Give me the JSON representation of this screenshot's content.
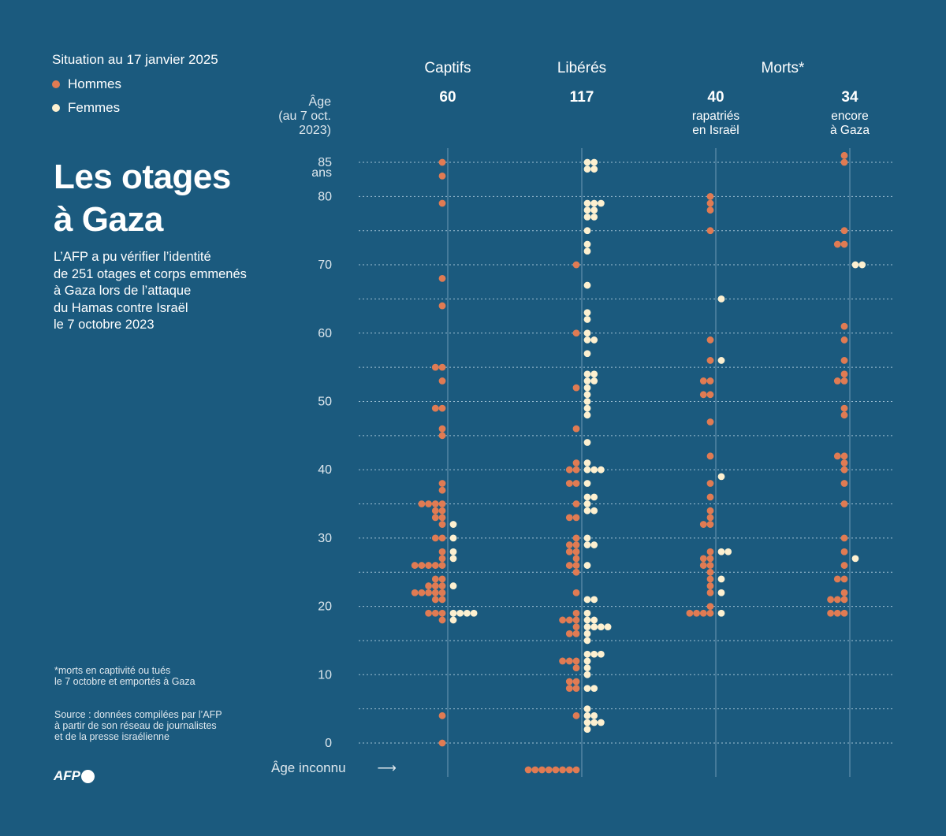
{
  "header": {
    "situation": "Situation au 17 janvier 2025",
    "legend": [
      {
        "label": "Hommes",
        "color": "#e07b53"
      },
      {
        "label": "Femmes",
        "color": "#fdf0d0"
      }
    ],
    "title_line1": "Les otages",
    "title_line2": "à Gaza",
    "intro": [
      "L’AFP a pu vérifier l’identité",
      "de 251 otages et corps emmenés",
      "à Gaza lors de l’attaque",
      "du Hamas contre Israël",
      "le 7 octobre 2023"
    ]
  },
  "footer": {
    "note": [
      "*morts en captivité ou tués",
      "le 7 octobre et emportés à Gaza"
    ],
    "source": [
      "Source : données compilées par l’AFP",
      "à partir de son réseau de journalistes",
      "et de la presse israélienne"
    ],
    "logo": "AFP"
  },
  "colors": {
    "background": "#1b5a7e",
    "men": "#e07b53",
    "women": "#fdf0d0"
  },
  "chart_data": {
    "type": "dot-plot",
    "ylabel": [
      "Âge",
      "(au 7 oct.",
      "2023)"
    ],
    "y_ticks": [
      {
        "value": 85,
        "label": "85",
        "sublabel": "ans"
      },
      {
        "value": 80,
        "label": "80"
      },
      {
        "value": 70,
        "label": "70"
      },
      {
        "value": 60,
        "label": "60"
      },
      {
        "value": 50,
        "label": "50"
      },
      {
        "value": 40,
        "label": "40"
      },
      {
        "value": 30,
        "label": "30"
      },
      {
        "value": 20,
        "label": "20"
      },
      {
        "value": 10,
        "label": "10"
      },
      {
        "value": 0,
        "label": "0"
      }
    ],
    "ylim": [
      0,
      85
    ],
    "grid": "dotted every 5 years",
    "unknown_age_label": "Âge inconnu",
    "unknown_arrow": "⟶",
    "group_labels": [
      {
        "label": "Captifs",
        "columns": [
          0
        ]
      },
      {
        "label": "Libérés",
        "columns": [
          1
        ]
      },
      {
        "label": "Morts*",
        "columns": [
          2,
          3
        ]
      }
    ],
    "columns": [
      {
        "total": "60",
        "sub": [],
        "unknown": {
          "men": 0,
          "women": 0
        },
        "ages": [
          [
            85,
            1,
            0
          ],
          [
            83,
            1,
            0
          ],
          [
            79,
            1,
            0
          ],
          [
            68,
            1,
            0
          ],
          [
            64,
            1,
            0
          ],
          [
            55,
            2,
            0
          ],
          [
            53,
            1,
            0
          ],
          [
            49,
            2,
            0
          ],
          [
            46,
            1,
            0
          ],
          [
            45,
            1,
            0
          ],
          [
            38,
            1,
            0
          ],
          [
            37,
            1,
            0
          ],
          [
            35,
            4,
            0
          ],
          [
            34,
            2,
            0
          ],
          [
            33,
            2,
            0
          ],
          [
            32,
            1,
            1
          ],
          [
            30,
            2,
            1
          ],
          [
            28,
            1,
            1
          ],
          [
            27,
            1,
            1
          ],
          [
            26,
            5,
            0
          ],
          [
            24,
            2,
            0
          ],
          [
            23,
            3,
            1
          ],
          [
            22,
            5,
            0
          ],
          [
            21,
            2,
            0
          ],
          [
            19,
            3,
            4
          ],
          [
            18,
            1,
            1
          ],
          [
            4,
            1,
            0
          ],
          [
            0,
            1,
            0
          ]
        ]
      },
      {
        "total": "117",
        "sub": [],
        "unknown": {
          "men": 8,
          "women": 0
        },
        "ages": [
          [
            85,
            0,
            2
          ],
          [
            84,
            0,
            2
          ],
          [
            79,
            0,
            3
          ],
          [
            78,
            0,
            2
          ],
          [
            77,
            0,
            2
          ],
          [
            75,
            0,
            1
          ],
          [
            73,
            0,
            1
          ],
          [
            72,
            0,
            1
          ],
          [
            70,
            1,
            0
          ],
          [
            67,
            0,
            1
          ],
          [
            63,
            0,
            1
          ],
          [
            62,
            0,
            1
          ],
          [
            60,
            1,
            1
          ],
          [
            59,
            0,
            2
          ],
          [
            57,
            0,
            1
          ],
          [
            54,
            0,
            2
          ],
          [
            53,
            0,
            2
          ],
          [
            52,
            1,
            1
          ],
          [
            51,
            0,
            1
          ],
          [
            50,
            0,
            1
          ],
          [
            49,
            0,
            1
          ],
          [
            48,
            0,
            1
          ],
          [
            46,
            1,
            0
          ],
          [
            44,
            0,
            1
          ],
          [
            41,
            1,
            1
          ],
          [
            40,
            2,
            3
          ],
          [
            38,
            2,
            1
          ],
          [
            36,
            0,
            2
          ],
          [
            35,
            1,
            1
          ],
          [
            34,
            0,
            2
          ],
          [
            33,
            2,
            0
          ],
          [
            30,
            1,
            1
          ],
          [
            29,
            2,
            2
          ],
          [
            28,
            2,
            0
          ],
          [
            27,
            1,
            0
          ],
          [
            26,
            2,
            1
          ],
          [
            25,
            1,
            0
          ],
          [
            22,
            1,
            0
          ],
          [
            21,
            0,
            2
          ],
          [
            19,
            1,
            1
          ],
          [
            18,
            3,
            2
          ],
          [
            17,
            1,
            4
          ],
          [
            16,
            2,
            1
          ],
          [
            15,
            0,
            1
          ],
          [
            13,
            0,
            3
          ],
          [
            12,
            3,
            1
          ],
          [
            11,
            1,
            1
          ],
          [
            10,
            0,
            1
          ],
          [
            9,
            2,
            0
          ],
          [
            8,
            2,
            2
          ],
          [
            5,
            0,
            1
          ],
          [
            4,
            1,
            2
          ],
          [
            3,
            0,
            3
          ],
          [
            2,
            0,
            1
          ]
        ]
      },
      {
        "total": "40",
        "sub": [
          "rapatriés",
          "en Israël"
        ],
        "unknown": {
          "men": 0,
          "women": 0
        },
        "ages": [
          [
            80,
            1,
            0
          ],
          [
            79,
            1,
            0
          ],
          [
            78,
            1,
            0
          ],
          [
            75,
            1,
            0
          ],
          [
            65,
            0,
            1
          ],
          [
            59,
            1,
            0
          ],
          [
            56,
            1,
            1
          ],
          [
            53,
            2,
            0
          ],
          [
            51,
            2,
            0
          ],
          [
            47,
            1,
            0
          ],
          [
            42,
            1,
            0
          ],
          [
            39,
            0,
            1
          ],
          [
            38,
            1,
            0
          ],
          [
            36,
            1,
            0
          ],
          [
            34,
            1,
            0
          ],
          [
            33,
            1,
            0
          ],
          [
            32,
            2,
            0
          ],
          [
            28,
            1,
            2
          ],
          [
            27,
            2,
            0
          ],
          [
            26,
            2,
            0
          ],
          [
            25,
            1,
            0
          ],
          [
            24,
            1,
            1
          ],
          [
            23,
            1,
            0
          ],
          [
            22,
            1,
            1
          ],
          [
            20,
            1,
            0
          ],
          [
            19,
            4,
            1
          ]
        ]
      },
      {
        "total": "34",
        "sub": [
          "encore",
          "à Gaza"
        ],
        "unknown": {
          "men": 0,
          "women": 0
        },
        "ages": [
          [
            86,
            1,
            0
          ],
          [
            85,
            1,
            0
          ],
          [
            75,
            1,
            0
          ],
          [
            73,
            2,
            0
          ],
          [
            70,
            0,
            2
          ],
          [
            61,
            1,
            0
          ],
          [
            59,
            1,
            0
          ],
          [
            56,
            1,
            0
          ],
          [
            54,
            1,
            0
          ],
          [
            53,
            2,
            0
          ],
          [
            49,
            1,
            0
          ],
          [
            48,
            1,
            0
          ],
          [
            42,
            2,
            0
          ],
          [
            41,
            1,
            0
          ],
          [
            40,
            1,
            0
          ],
          [
            38,
            1,
            0
          ],
          [
            35,
            1,
            0
          ],
          [
            30,
            1,
            0
          ],
          [
            28,
            1,
            0
          ],
          [
            27,
            0,
            1
          ],
          [
            26,
            1,
            0
          ],
          [
            24,
            2,
            0
          ],
          [
            22,
            1,
            0
          ],
          [
            21,
            3,
            0
          ],
          [
            19,
            3,
            0
          ]
        ]
      }
    ]
  }
}
